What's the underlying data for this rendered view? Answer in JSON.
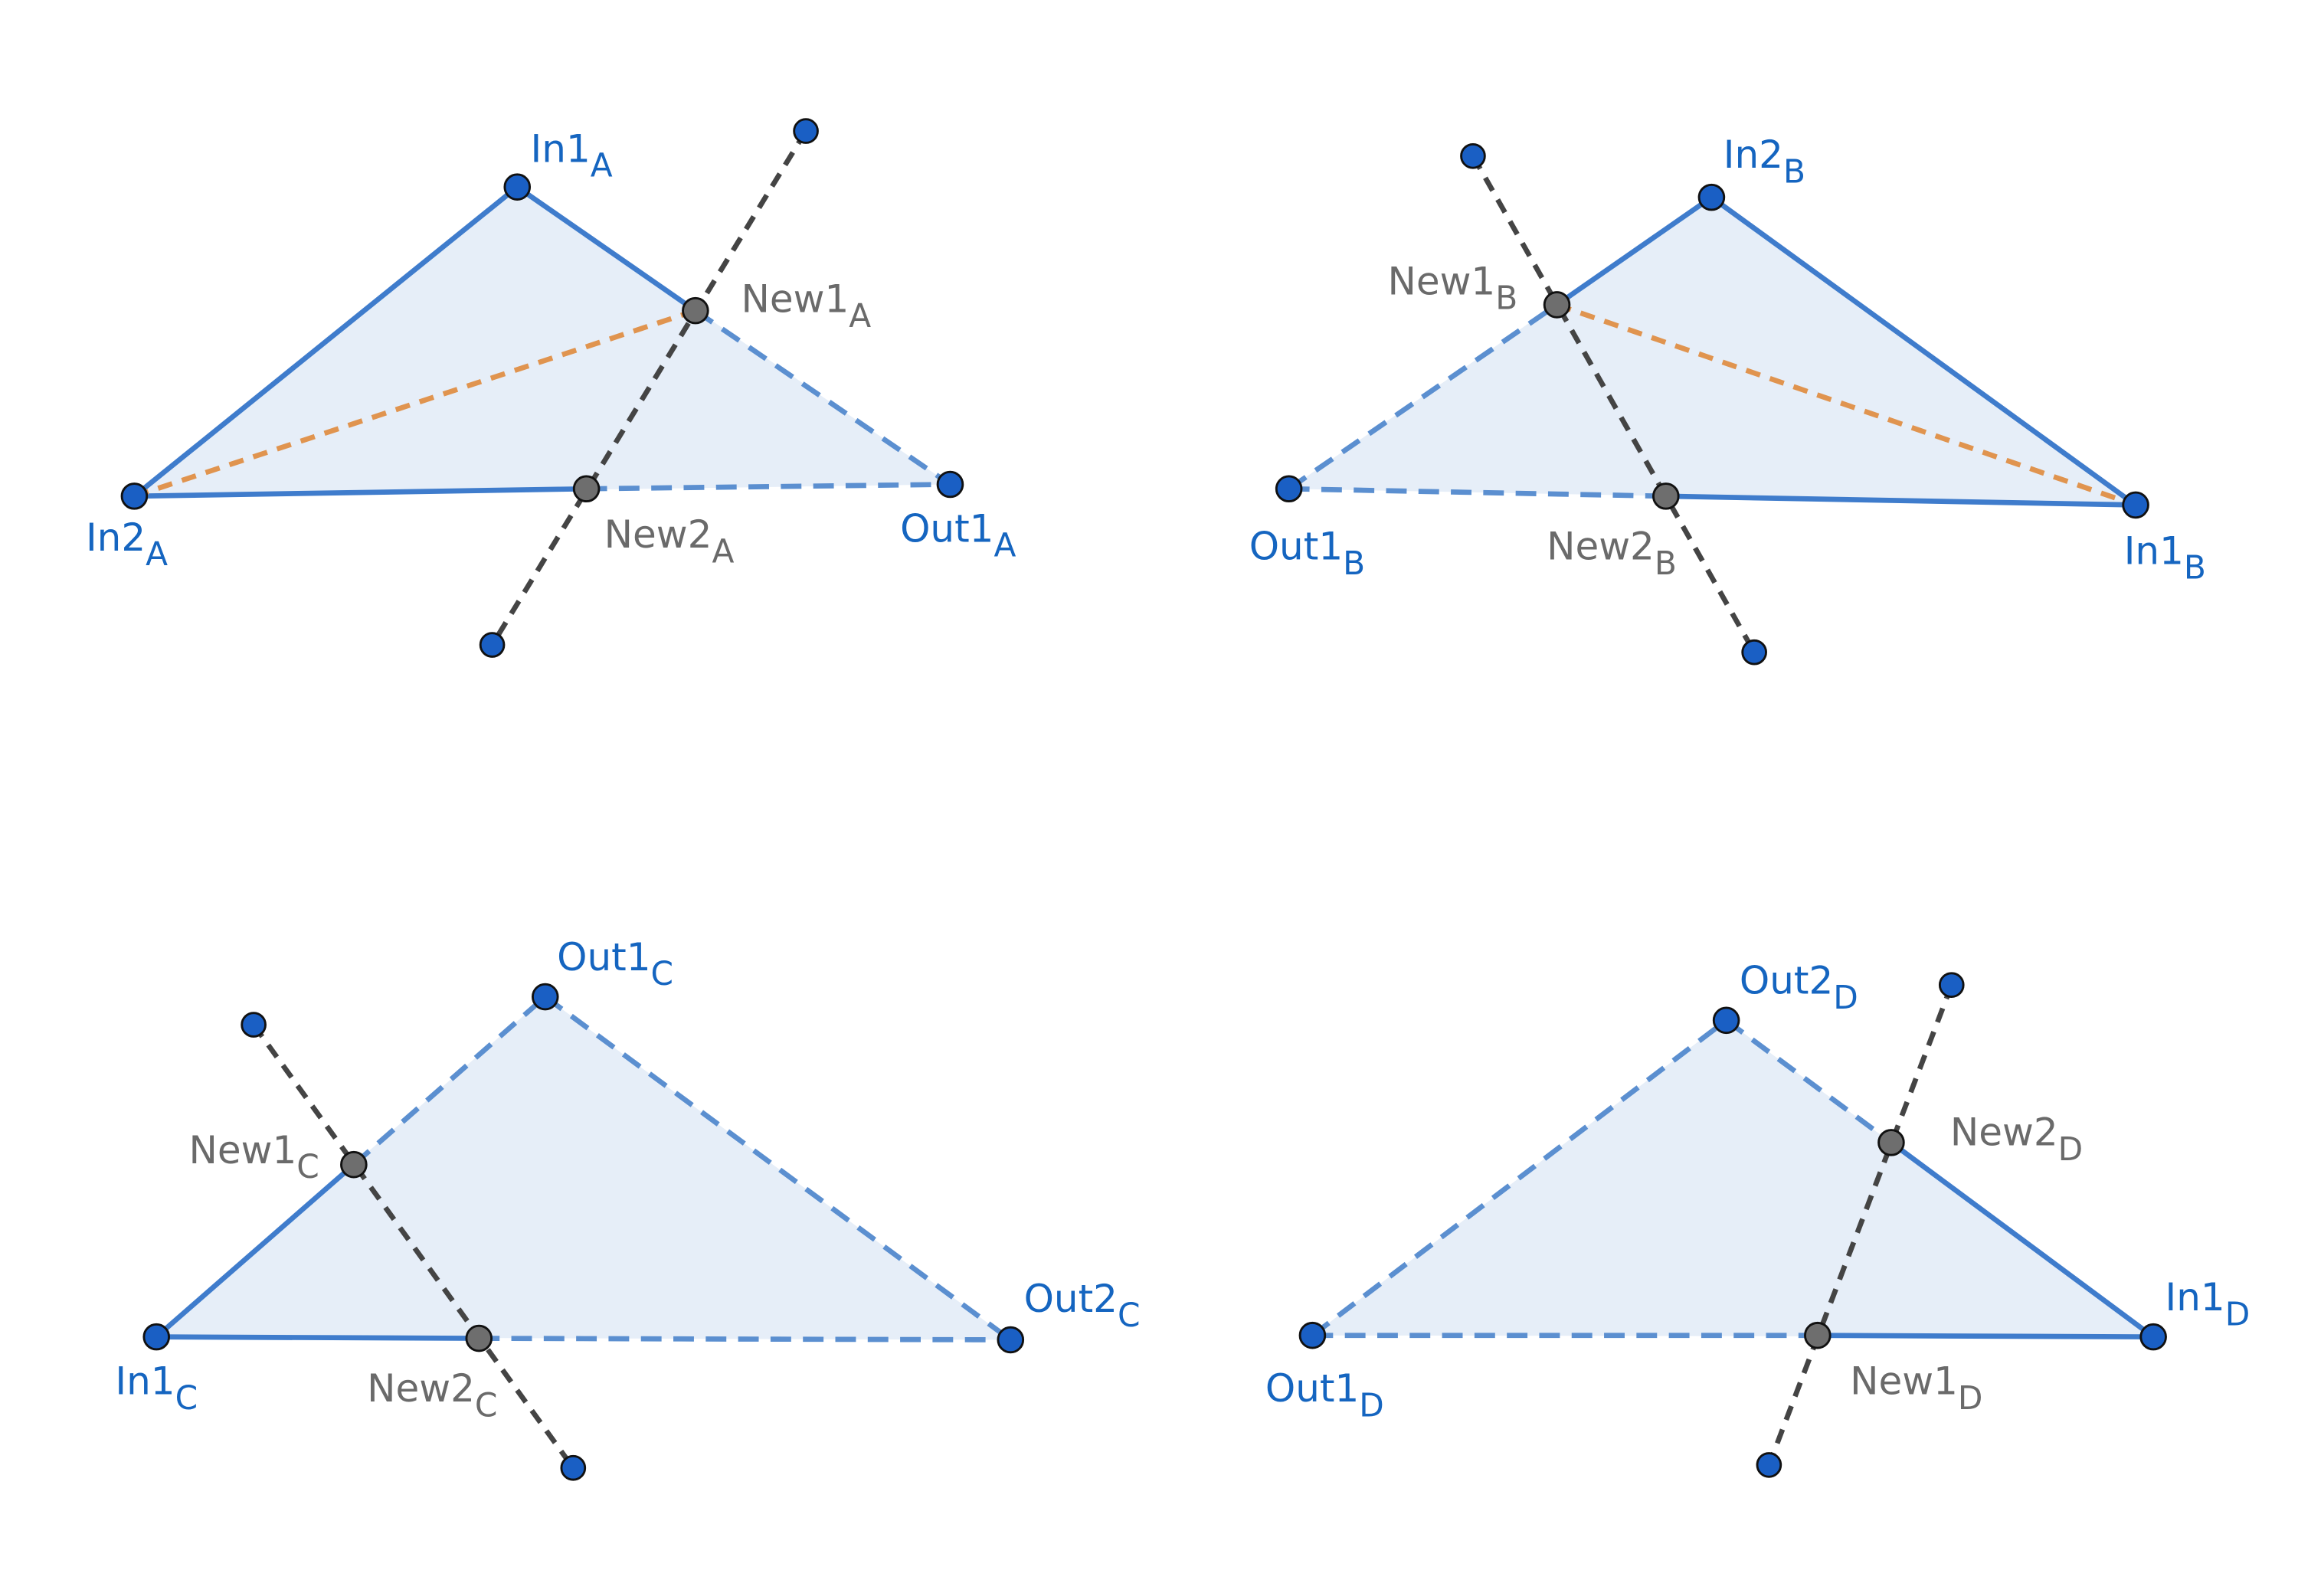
{
  "panels": [
    {
      "nodes": [
        {
          "label": "In1",
          "sub": "A"
        },
        {
          "label": "In2",
          "sub": "A"
        },
        {
          "label": "Out1",
          "sub": "A"
        },
        {
          "label": "New1",
          "sub": "A"
        },
        {
          "label": "New2",
          "sub": "A"
        }
      ]
    },
    {
      "nodes": [
        {
          "label": "In2",
          "sub": "B"
        },
        {
          "label": "In1",
          "sub": "B"
        },
        {
          "label": "Out1",
          "sub": "B"
        },
        {
          "label": "New1",
          "sub": "B"
        },
        {
          "label": "New2",
          "sub": "B"
        }
      ]
    },
    {
      "nodes": [
        {
          "label": "Out1",
          "sub": "C"
        },
        {
          "label": "In1",
          "sub": "C"
        },
        {
          "label": "Out2",
          "sub": "C"
        },
        {
          "label": "New1",
          "sub": "C"
        },
        {
          "label": "New2",
          "sub": "C"
        }
      ]
    },
    {
      "nodes": [
        {
          "label": "Out2",
          "sub": "D"
        },
        {
          "label": "In1",
          "sub": "D"
        },
        {
          "label": "Out1",
          "sub": "D"
        },
        {
          "label": "New2",
          "sub": "D"
        },
        {
          "label": "New1",
          "sub": "D"
        }
      ]
    }
  ]
}
